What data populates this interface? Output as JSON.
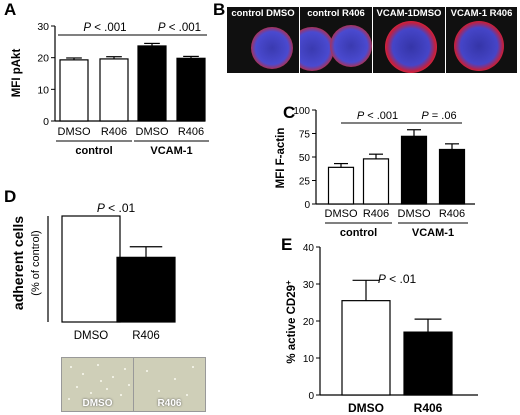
{
  "panels": {
    "A": {
      "label": "A",
      "chart_data": {
        "type": "bar",
        "ylabel": "MFI pAkt",
        "ylim": [
          0,
          30
        ],
        "yticks": [
          0,
          10,
          20,
          30
        ],
        "categories": [
          "DMSO",
          "R406",
          "DMSO",
          "R406"
        ],
        "groups": [
          "control",
          "VCAM-1"
        ],
        "values": [
          19.3,
          19.6,
          23.7,
          19.8
        ],
        "errors": [
          0.6,
          0.7,
          0.8,
          0.6
        ],
        "fills": [
          "#ffffff",
          "#ffffff",
          "#000000",
          "#000000"
        ],
        "annotations": [
          {
            "text": "P < .001",
            "from": 0,
            "to": 2
          },
          {
            "text": "P < .001",
            "from": 2,
            "to": 3
          }
        ]
      }
    },
    "B": {
      "label": "B",
      "images": [
        {
          "caption": "control DMSO"
        },
        {
          "caption": "control R406"
        },
        {
          "caption": "VCAM-1DMSO"
        },
        {
          "caption": "VCAM-1 R406"
        }
      ]
    },
    "C": {
      "label": "C",
      "chart_data": {
        "type": "bar",
        "ylabel": "MFI F-actin",
        "ylim": [
          0,
          100
        ],
        "yticks": [
          0,
          25,
          50,
          75,
          100
        ],
        "categories": [
          "DMSO",
          "R406",
          "DMSO",
          "R406"
        ],
        "groups": [
          "control",
          "VCAM-1"
        ],
        "values": [
          39,
          48,
          72,
          58
        ],
        "errors": [
          4,
          5,
          7,
          6
        ],
        "fills": [
          "#ffffff",
          "#ffffff",
          "#000000",
          "#000000"
        ],
        "annotations": [
          {
            "text": "P < .001",
            "from": 0,
            "to": 2
          },
          {
            "text": "P = .06",
            "from": 2,
            "to": 3
          }
        ]
      }
    },
    "D": {
      "label": "D",
      "chart_data": {
        "type": "bar",
        "ylabel": "adherent cells",
        "ylabel_sub": "(% of control)",
        "ylim": [
          0,
          100
        ],
        "categories": [
          "DMSO",
          "R406"
        ],
        "values": [
          100,
          61
        ],
        "errors": [
          0,
          10
        ],
        "fills": [
          "#ffffff",
          "#000000"
        ],
        "annotation": "P < .01"
      },
      "images": [
        {
          "caption": "DMSO"
        },
        {
          "caption": "R406"
        }
      ]
    },
    "E": {
      "label": "E",
      "chart_data": {
        "type": "bar",
        "ylabel": "% active CD29",
        "ylabel_sup": "+",
        "ylim": [
          0,
          40
        ],
        "yticks": [
          0,
          10,
          20,
          30,
          40
        ],
        "categories": [
          "DMSO",
          "R406"
        ],
        "values": [
          25.5,
          17
        ],
        "errors": [
          5.5,
          3.5
        ],
        "fills": [
          "#ffffff",
          "#000000"
        ],
        "annotation": "P < .01"
      }
    }
  }
}
